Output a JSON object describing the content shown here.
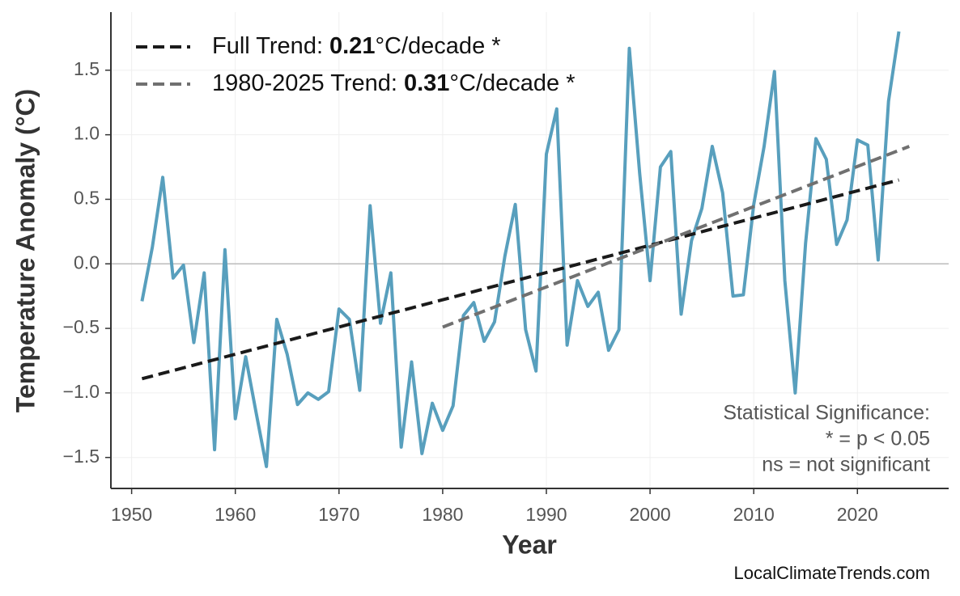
{
  "chart_data": {
    "type": "line",
    "x_label": "Year",
    "y_label": "Temperature Anomaly (°C)",
    "x": [
      1951,
      1952,
      1953,
      1954,
      1955,
      1956,
      1957,
      1958,
      1959,
      1960,
      1961,
      1962,
      1963,
      1964,
      1965,
      1966,
      1967,
      1968,
      1969,
      1970,
      1971,
      1972,
      1973,
      1974,
      1975,
      1976,
      1977,
      1978,
      1979,
      1980,
      1981,
      1982,
      1983,
      1984,
      1985,
      1986,
      1987,
      1988,
      1989,
      1990,
      1991,
      1992,
      1993,
      1994,
      1995,
      1996,
      1997,
      1998,
      1999,
      2000,
      2001,
      2002,
      2003,
      2004,
      2005,
      2006,
      2007,
      2008,
      2009,
      2010,
      2011,
      2012,
      2013,
      2014,
      2015,
      2016,
      2017,
      2018,
      2019,
      2020,
      2021,
      2022,
      2023,
      2024
    ],
    "values": [
      -0.29,
      0.13,
      0.67,
      -0.11,
      -0.01,
      -0.61,
      -0.07,
      -1.44,
      0.11,
      -1.2,
      -0.72,
      -1.15,
      -1.57,
      -0.43,
      -0.7,
      -1.09,
      -1.0,
      -1.05,
      -0.99,
      -0.35,
      -0.43,
      -0.98,
      0.45,
      -0.46,
      -0.07,
      -1.42,
      -0.76,
      -1.47,
      -1.08,
      -1.29,
      -1.1,
      -0.4,
      -0.3,
      -0.6,
      -0.45,
      0.06,
      0.46,
      -0.51,
      -0.83,
      0.85,
      1.2,
      -0.63,
      -0.13,
      -0.33,
      -0.22,
      -0.67,
      -0.51,
      1.67,
      0.7,
      -0.13,
      0.75,
      0.87,
      -0.39,
      0.18,
      0.43,
      0.91,
      0.55,
      -0.25,
      -0.24,
      0.46,
      0.91,
      1.49,
      -0.13,
      -1.0,
      0.16,
      0.97,
      0.81,
      0.15,
      0.34,
      0.96,
      0.92,
      0.03,
      1.26,
      1.8
    ],
    "color": "#589fbd",
    "trends": [
      {
        "name": "Full Trend:",
        "slope": "0.21",
        "unit": "°C/decade *",
        "x": [
          1951,
          2024
        ],
        "values": [
          -0.89,
          0.65
        ],
        "color": "#1a1a1a"
      },
      {
        "name": "1980-2025 Trend:",
        "slope": "0.31",
        "unit": "°C/decade *",
        "x": [
          1980,
          2025
        ],
        "values": [
          -0.49,
          0.91
        ],
        "color": "#707070"
      }
    ],
    "xlim": [
      1948,
      2028.8
    ],
    "ylim": [
      -1.74,
      1.95
    ],
    "xticks": [
      1950,
      1960,
      1970,
      1980,
      1990,
      2000,
      2010,
      2020
    ],
    "yticks": [
      {
        "value": -1.5,
        "label": "−1.5"
      },
      {
        "value": -1.0,
        "label": "−1.0"
      },
      {
        "value": -0.5,
        "label": "−0.5"
      },
      {
        "value": 0,
        "label": "0.0"
      },
      0.5,
      {
        "value": 1.0,
        "label": "1.0"
      },
      1.5
    ],
    "grid": true,
    "zero_line": true,
    "legend_position": "upper-left",
    "annotations": [
      "Statistical Significance:",
      "* = p < 0.05",
      "ns = not significant"
    ],
    "source": "LocalClimateTrends.com"
  }
}
